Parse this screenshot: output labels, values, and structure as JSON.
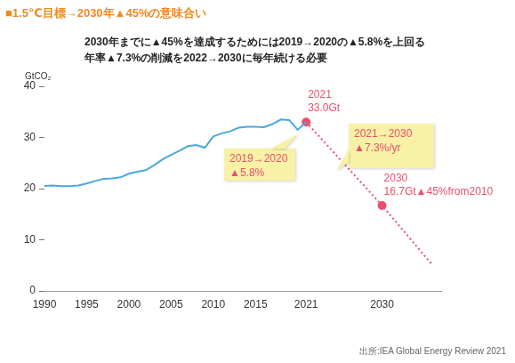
{
  "chart_data": {
    "type": "line",
    "title": "■1.5℃目標→2030年▲45%の意味合い",
    "subtitle": [
      "2030年までに▲45%を達成するためには2019→2020の▲5.8%を上回る",
      "年率▲7.3%の削減を2022→2030に毎年続ける必要"
    ],
    "y_label": "GtCO₂",
    "source": "出所:IEA Global Energy Review 2021",
    "xlim": [
      1990,
      2037
    ],
    "xticks": [
      1990,
      1995,
      2000,
      2005,
      2010,
      2015,
      2021,
      2030
    ],
    "ylim": [
      0,
      40
    ],
    "yticks": [
      0,
      10,
      20,
      30,
      40
    ],
    "grid": false,
    "series": [
      {
        "type": "line",
        "color": "#4aa8dc",
        "line_style": "solid",
        "marker": "none",
        "x": [
          1990,
          1991,
          1992,
          1993,
          1994,
          1995,
          1996,
          1997,
          1998,
          1999,
          2000,
          2001,
          2002,
          2003,
          2004,
          2005,
          2006,
          2007,
          2008,
          2009,
          2010,
          2011,
          2012,
          2013,
          2014,
          2015,
          2016,
          2017,
          2018,
          2019,
          2020,
          2021
        ],
        "values": [
          20.5,
          20.6,
          20.5,
          20.5,
          20.6,
          21.0,
          21.5,
          21.9,
          22.0,
          22.2,
          22.9,
          23.3,
          23.6,
          24.6,
          25.7,
          26.6,
          27.4,
          28.3,
          28.5,
          28.0,
          30.2,
          30.8,
          31.2,
          31.9,
          32.1,
          32.1,
          32.0,
          32.6,
          33.5,
          33.4,
          31.5,
          33.0
        ]
      },
      {
        "type": "line",
        "color": "#e8506e",
        "line_style": "dotted",
        "marker": "none",
        "x": [
          2021,
          2030,
          2036
        ],
        "values": [
          33.0,
          16.7,
          5.0
        ]
      },
      {
        "type": "scatter",
        "color": "#e8506e",
        "marker": "circle",
        "x": [
          2021,
          2030
        ],
        "values": [
          33.0,
          16.7
        ],
        "data_labels": true,
        "value_labels": [
          [
            "2021",
            "33.0Gt"
          ],
          [
            "2030",
            "16.7Gt▲45%from2010"
          ]
        ]
      }
    ],
    "annotations": [
      {
        "text": [
          "2019→2020",
          "▲5.8%"
        ]
      },
      {
        "text": [
          "2021→2030",
          "▲7.3%/yr"
        ]
      }
    ]
  }
}
